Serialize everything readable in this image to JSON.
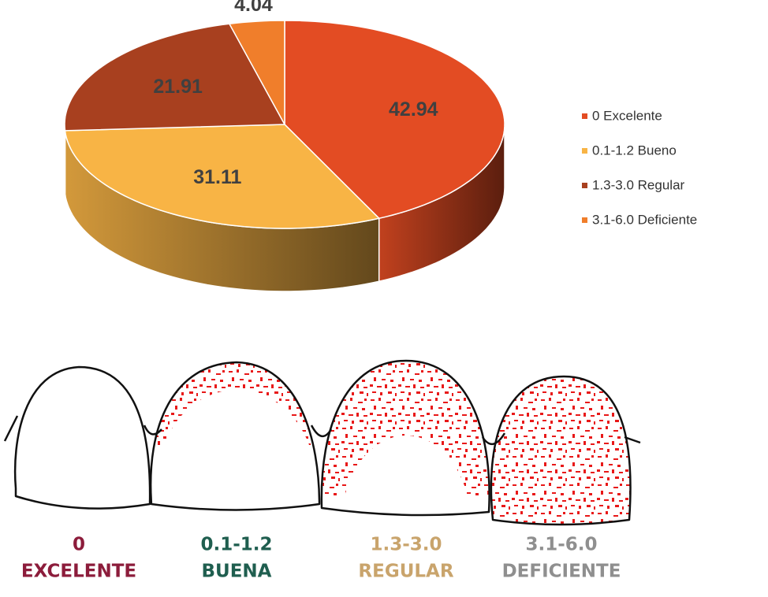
{
  "chart_data": {
    "type": "pie",
    "categories": [
      "0 Excelente",
      "0.1-1.2 Bueno",
      "1.3-3.0 Regular",
      "3.1-6.0 Deficiente"
    ],
    "values": [
      42.94,
      31.11,
      21.91,
      4.04
    ],
    "colors": [
      "#e34c23",
      "#f8b445",
      "#a8401f",
      "#f07e2b"
    ],
    "legend": "right"
  },
  "illustration": {
    "labels": [
      {
        "range": "0",
        "name": "EXCELENTE",
        "color": "#8c1c3b"
      },
      {
        "range": "0.1-1.2",
        "name": "BUENA",
        "color": "#1f5e4f"
      },
      {
        "range": "1.3-3.0",
        "name": "REGULAR",
        "color": "#c9a46c"
      },
      {
        "range": "3.1-6.0",
        "name": "DEFICIENTE",
        "color": "#8f8f8f"
      }
    ]
  }
}
